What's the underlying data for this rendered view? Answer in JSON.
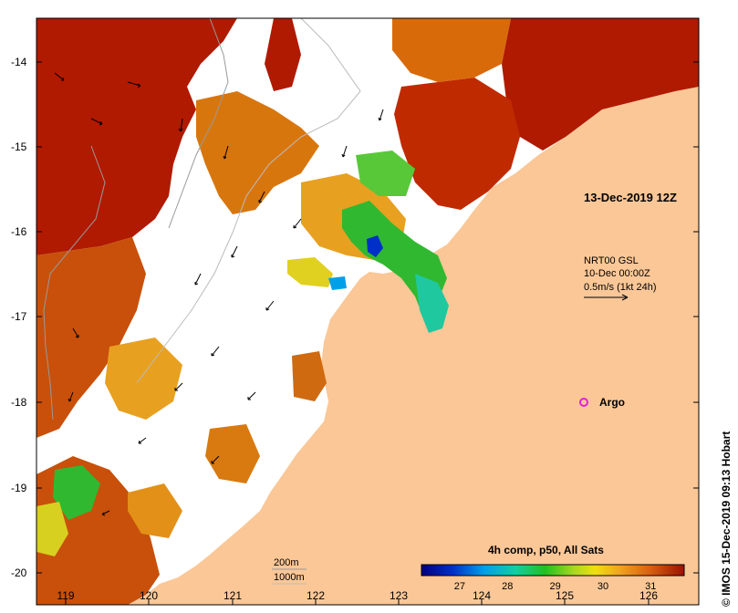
{
  "map": {
    "date_label": "13-Dec-2019 12Z",
    "current_legend": {
      "line1": "NRT00 GSL",
      "line2": "10-Dec 00:00Z",
      "line3": "0.5m/s (1kt 24h)"
    },
    "argo_label": "Argo",
    "depth_legend": {
      "contour1": "200m",
      "contour2": "1000m"
    },
    "credit": "© IMOS 15-Dec-2019 09:13 Hobart",
    "colorbar": {
      "title": "4h comp, p50, All Sats",
      "ticks": [
        "27",
        "28",
        "29",
        "30",
        "31"
      ],
      "tick_values": [
        27,
        28,
        29,
        30,
        31
      ],
      "range": [
        26.2,
        31.7
      ]
    },
    "axes": {
      "x_ticks": [
        "119",
        "120",
        "121",
        "122",
        "123",
        "124",
        "125",
        "126"
      ],
      "x_values": [
        119,
        120,
        121,
        122,
        123,
        124,
        125,
        126
      ],
      "y_ticks": [
        "-14",
        "-15",
        "-16",
        "-17",
        "-18",
        "-19",
        "-20"
      ],
      "y_values": [
        -14,
        -15,
        -16,
        -17,
        -18,
        -19,
        -20
      ],
      "lon_range": [
        118.7,
        126.7
      ],
      "lat_range": [
        -20.1,
        -13.5
      ]
    },
    "argo_float": {
      "lon": 125.3,
      "lat": -18.0
    },
    "colors": {
      "land": "#fbc797",
      "cloud": "#ffffff",
      "sst_hot": "#b01a00",
      "sst_warm": "#d86a0a",
      "sst_mid": "#e8a020",
      "sst_cool": "#30b830",
      "argo": "#e020e0"
    }
  }
}
